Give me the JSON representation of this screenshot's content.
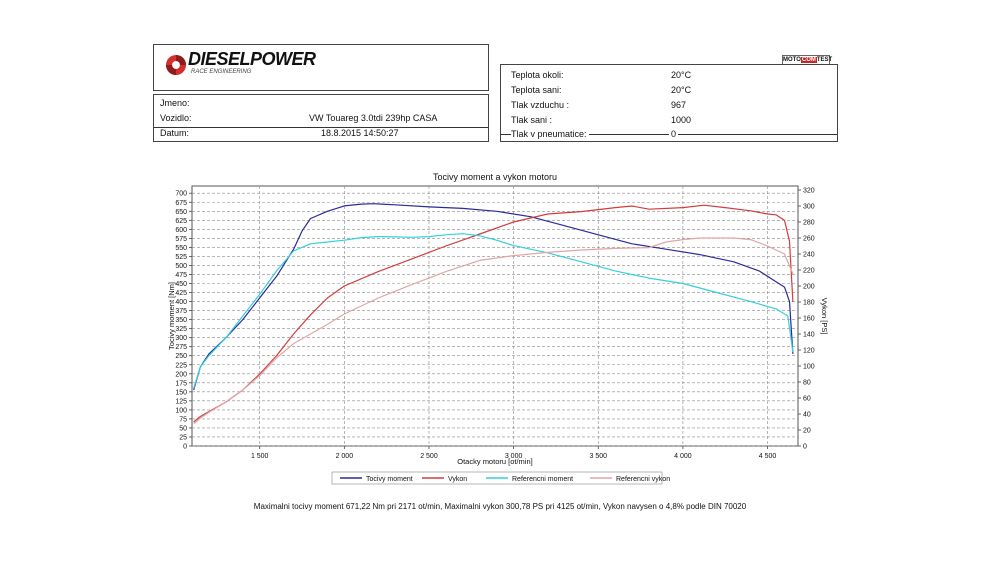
{
  "brand": {
    "name": "DIESELPOWER",
    "tagline": "RACE ENGINEERING",
    "badge": [
      "MOTO",
      "COM",
      "TEST"
    ]
  },
  "vehicle": {
    "rows": [
      {
        "label": "Jmeno:",
        "value": ""
      },
      {
        "label": "Vozidlo:",
        "value": "VW Touareg 3.0tdi 239hp CASA"
      },
      {
        "label": "Datum:",
        "value": "18.8.2015 14:50:27"
      }
    ]
  },
  "conditions": {
    "rows": [
      {
        "label": "Teplota okoli:",
        "value": "20°C"
      },
      {
        "label": "Teplota sani:",
        "value": "20°C"
      },
      {
        "label": "Tlak vzduchu :",
        "value": "967"
      },
      {
        "label": "Tlak sani :",
        "value": "1000"
      },
      {
        "label": "Tlak v pneumatice:",
        "value": "0"
      }
    ]
  },
  "chart_data": {
    "type": "line",
    "title": "Tocivy moment a vykon motoru",
    "xlabel": "Otacky motoru [ot/min]",
    "ylabel": "Tocivy moment [Nm]",
    "y2label": "Vykon [PS]",
    "xlim": [
      1100,
      4680
    ],
    "ylim": [
      0,
      720
    ],
    "y2lim": [
      0,
      325
    ],
    "x_ticks": [
      1500,
      2000,
      2500,
      3000,
      3500,
      4000,
      4500
    ],
    "x_tick_labels": [
      "1 500",
      "2 000",
      "2 500",
      "3 000",
      "3 500",
      "4 000",
      "4 500"
    ],
    "y_ticks": [
      0,
      25,
      50,
      75,
      100,
      125,
      150,
      175,
      200,
      225,
      250,
      275,
      300,
      325,
      350,
      375,
      400,
      425,
      450,
      475,
      500,
      525,
      550,
      575,
      600,
      625,
      650,
      675,
      700
    ],
    "y2_ticks": [
      0,
      20,
      40,
      60,
      80,
      100,
      120,
      140,
      160,
      180,
      200,
      220,
      240,
      260,
      280,
      300,
      320
    ],
    "grid": true,
    "legend_position": "bottom",
    "series": [
      {
        "name": "Tocivy moment",
        "axis": "left",
        "color": "#2a2a9c",
        "x": [
          1110,
          1150,
          1200,
          1300,
          1400,
          1500,
          1600,
          1700,
          1750,
          1800,
          1900,
          2000,
          2100,
          2171,
          2300,
          2500,
          2700,
          2900,
          3100,
          3300,
          3500,
          3700,
          3900,
          4100,
          4300,
          4450,
          4550,
          4600,
          4630,
          4650
        ],
        "y": [
          155,
          220,
          255,
          300,
          350,
          410,
          470,
          545,
          595,
          630,
          650,
          665,
          670,
          671,
          668,
          662,
          658,
          650,
          635,
          610,
          585,
          560,
          545,
          530,
          510,
          485,
          455,
          440,
          400,
          255
        ]
      },
      {
        "name": "Vykon",
        "axis": "right",
        "color": "#d23c3c",
        "x": [
          1110,
          1150,
          1200,
          1300,
          1400,
          1500,
          1600,
          1700,
          1800,
          1900,
          2000,
          2200,
          2400,
          2600,
          2800,
          3000,
          3200,
          3400,
          3600,
          3700,
          3800,
          4000,
          4125,
          4250,
          4400,
          4500,
          4550,
          4600,
          4630,
          4650
        ],
        "y": [
          30,
          37,
          43,
          55,
          70,
          90,
          113,
          140,
          164,
          185,
          200,
          218,
          234,
          250,
          265,
          280,
          290,
          293,
          298,
          300,
          296,
          298,
          301,
          298,
          294,
          290,
          289,
          282,
          256,
          180
        ]
      },
      {
        "name": "Referencni moment",
        "axis": "left",
        "color": "#33d0dd",
        "x": [
          1110,
          1150,
          1200,
          1300,
          1400,
          1500,
          1600,
          1700,
          1800,
          1900,
          2000,
          2100,
          2200,
          2300,
          2400,
          2500,
          2600,
          2700,
          2800,
          2900,
          3000,
          3200,
          3400,
          3600,
          3800,
          4000,
          4200,
          4400,
          4550,
          4620,
          4650
        ],
        "y": [
          160,
          220,
          250,
          300,
          360,
          420,
          485,
          540,
          560,
          565,
          570,
          577,
          580,
          579,
          578,
          580,
          585,
          588,
          582,
          570,
          555,
          535,
          510,
          485,
          465,
          450,
          425,
          400,
          380,
          360,
          260
        ]
      },
      {
        "name": "Referencni vykon",
        "axis": "right",
        "color": "#e0a6a6",
        "x": [
          1110,
          1150,
          1200,
          1300,
          1400,
          1500,
          1600,
          1700,
          1800,
          1900,
          2000,
          2200,
          2400,
          2600,
          2800,
          3000,
          3200,
          3400,
          3600,
          3800,
          3900,
          4000,
          4100,
          4200,
          4300,
          4400,
          4500,
          4600,
          4650
        ],
        "y": [
          28,
          35,
          42,
          55,
          70,
          88,
          110,
          128,
          140,
          152,
          165,
          185,
          202,
          218,
          232,
          238,
          242,
          245,
          247,
          248,
          255,
          258,
          260,
          260,
          260,
          258,
          250,
          240,
          215
        ]
      }
    ]
  },
  "summary": "Maximalni tocivy moment 671,22 Nm pri 2171 ot/min,  Maximalni vykon 300,78 PS pri 4125 ot/min,  Vykon navysen o 4,8% podle DIN 70020"
}
